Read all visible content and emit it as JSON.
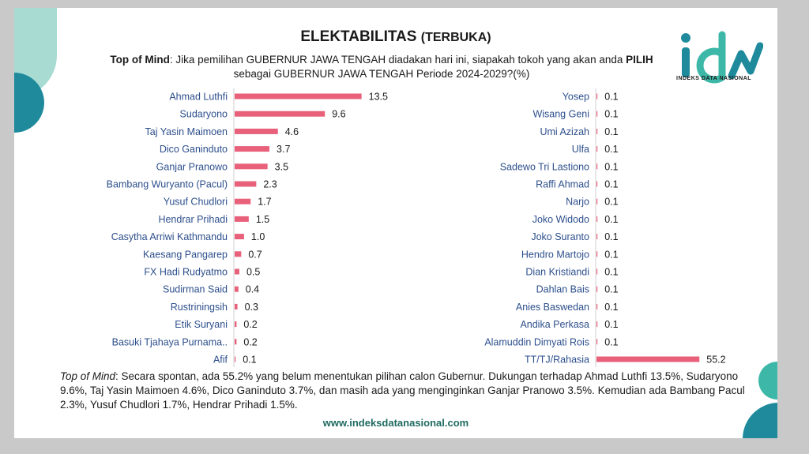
{
  "header": {
    "title_main": "ELEKTABILITAS",
    "title_sub": "(TERBUKA)",
    "question_lead": "Top of Mind",
    "question_part1": ": Jika pemilihan GUBERNUR JAWA TENGAH diadakan hari ini, siapakah tokoh yang akan anda ",
    "question_bold": "PILIH",
    "question_part2": "sebagai GUBERNUR JAWA TENGAH Periode 2024-2029?(%)"
  },
  "logo": {
    "mark": "idn",
    "text": "INDEKS DATA NASIONAL"
  },
  "colors": {
    "bar": "#e8607a",
    "teal": "#1e8a9c",
    "mint": "#a8dcd3",
    "website": "#1f6b60"
  },
  "chart_data": {
    "type": "bar",
    "orientation": "horizontal",
    "unit": "%",
    "panels": [
      {
        "categories": [
          "Ahmad Luthfi",
          "Sudaryono",
          "Taj Yasin Maimoen",
          "Dico Ganinduto",
          "Ganjar Pranowo",
          "Bambang Wuryanto (Pacul)",
          "Yusuf Chudlori",
          "Hendrar Prihadi",
          "Casytha Arriwi Kathmandu",
          "Kaesang Pangarep",
          "FX Hadi Rudyatmo",
          "Sudirman Said",
          "Rustriningsih",
          "Etik Suryani",
          "Basuki Tjahaya Purnama..",
          "Afif"
        ],
        "values": [
          13.5,
          9.6,
          4.6,
          3.7,
          3.5,
          2.3,
          1.7,
          1.5,
          1.0,
          0.7,
          0.5,
          0.4,
          0.3,
          0.2,
          0.2,
          0.1
        ],
        "value_labels": [
          "13.5",
          "9.6",
          "4.6",
          "3.7",
          "3.5",
          "2.3",
          "1.7",
          "1.5",
          "1.0",
          "0.7",
          "0.5",
          "0.4",
          "0.3",
          "0.2",
          "0.2",
          "0.1"
        ]
      },
      {
        "categories": [
          "Yosep",
          "Wisang Geni",
          "Umi Azizah",
          "Ulfa",
          "Sadewo Tri Lastiono",
          "Raffi Ahmad",
          "Narjo",
          "Joko Widodo",
          "Joko Suranto",
          "Hendro Martojo",
          "Dian Kristiandi",
          "Dahlan Bais",
          "Anies Baswedan",
          "Andika Perkasa",
          "Alamuddin Dimyati Rois",
          "TT/TJ/Rahasia"
        ],
        "values": [
          0.1,
          0.1,
          0.1,
          0.1,
          0.1,
          0.1,
          0.1,
          0.1,
          0.1,
          0.1,
          0.1,
          0.1,
          0.1,
          0.1,
          0.1,
          55.2
        ],
        "value_labels": [
          "0.1",
          "0.1",
          "0.1",
          "0.1",
          "0.1",
          "0.1",
          "0.1",
          "0.1",
          "0.1",
          "0.1",
          "0.1",
          "0.1",
          "0.1",
          "0.1",
          "0.1",
          "55.2"
        ]
      }
    ]
  },
  "summary": {
    "lead": "Top of Mind",
    "text": ": Secara spontan, ada 55.2% yang belum menentukan pilihan calon Gubernur. Dukungan terhadap Ahmad Luthfi 13.5%, Sudaryono 9.6%, Taj Yasin Maimoen 4.6%, Dico Ganinduto 3.7%, dan masih ada yang menginginkan Ganjar Pranowo 3.5%. Kemudian ada Bambang Pacul 2.3%, Yusuf Chudlori 1.7%, Hendrar Prihadi 1.5%."
  },
  "footer": {
    "website": "www.indeksdatanasional.com"
  }
}
